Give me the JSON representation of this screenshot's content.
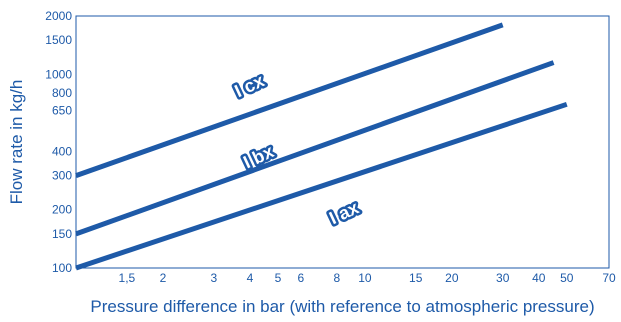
{
  "chart_data": {
    "type": "line",
    "title": "",
    "xlabel": "Pressure difference in bar (with reference to atmospheric pressure)",
    "ylabel": "Flow rate in kg/h",
    "xscale": "log",
    "yscale": "log",
    "xlim": [
      1,
      70
    ],
    "ylim": [
      100,
      2000
    ],
    "grid": true,
    "legend": "inline labels on lines",
    "x_ticks": [
      1.5,
      2,
      3,
      4,
      5,
      6,
      8,
      10,
      15,
      20,
      30,
      40,
      50,
      70
    ],
    "x_tick_labels": [
      "1,5",
      "2",
      "3",
      "4",
      "5",
      "6",
      "8",
      "10",
      "15",
      "20",
      "30",
      "40",
      "50",
      "70"
    ],
    "y_ticks": [
      100,
      150,
      200,
      300,
      400,
      650,
      800,
      1000,
      1500,
      2000
    ],
    "y_tick_labels": [
      "100",
      "150",
      "200",
      "300",
      "400",
      "650",
      "800",
      "1000",
      "1500",
      "2000"
    ],
    "extra_grid_x": [
      7,
      9,
      25
    ],
    "extra_grid_y": [
      250,
      500,
      700,
      900
    ],
    "series": [
      {
        "name": "I ax",
        "label_position": [
          8.5,
          190
        ],
        "label_angle_deg": -25,
        "x": [
          1,
          50
        ],
        "y": [
          100,
          700
        ]
      },
      {
        "name": "I bx",
        "label_position": [
          4.3,
          370
        ],
        "label_angle_deg": -25,
        "x": [
          1,
          45
        ],
        "y": [
          150,
          1150
        ]
      },
      {
        "name": "I cx",
        "label_position": [
          4.0,
          860
        ],
        "label_angle_deg": -25,
        "x": [
          1,
          30
        ],
        "y": [
          300,
          1800
        ]
      }
    ],
    "colors": {
      "line": "#1e5aa8",
      "grid": "#1e5aa8",
      "text": "#1e5aa8",
      "background": "#ffffff"
    }
  }
}
